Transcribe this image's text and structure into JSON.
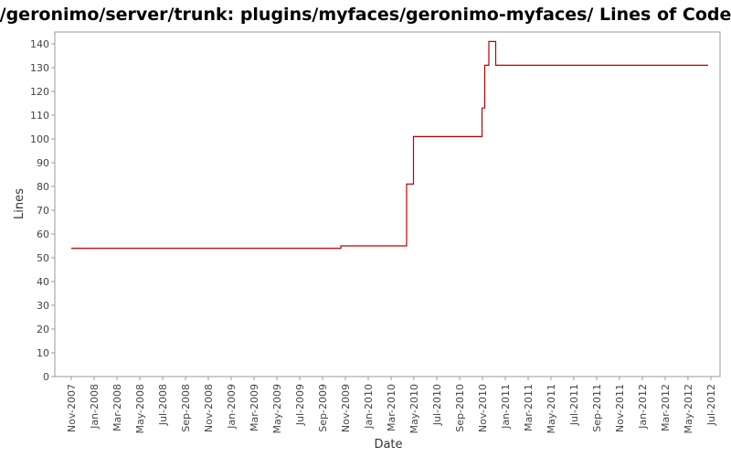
{
  "chart_data": {
    "type": "step",
    "title": "/geronimo/server/trunk: plugins/myfaces/geronimo-myfaces/ Lines of Code",
    "x_label": "Date",
    "y_label": "Lines",
    "x": [
      2007.833,
      2009.8,
      2010.28,
      2010.33,
      2010.83,
      2010.85,
      2010.88,
      2010.93,
      2012.48
    ],
    "series": [
      {
        "name": "Lines",
        "color": "#c00000",
        "values": [
          54,
          55,
          81,
          101,
          113,
          131,
          141,
          131,
          131
        ]
      }
    ],
    "xlim": [
      2007.713,
      2012.567
    ],
    "ylim": [
      0,
      145
    ],
    "yticks": [
      0,
      10,
      20,
      30,
      40,
      50,
      60,
      70,
      80,
      90,
      100,
      110,
      120,
      130,
      140
    ],
    "xticks": [
      {
        "value": 2007.833,
        "label": "Nov-2007"
      },
      {
        "value": 2008.0,
        "label": "Jan-2008"
      },
      {
        "value": 2008.167,
        "label": "Mar-2008"
      },
      {
        "value": 2008.333,
        "label": "May-2008"
      },
      {
        "value": 2008.5,
        "label": "Jul-2008"
      },
      {
        "value": 2008.667,
        "label": "Sep-2008"
      },
      {
        "value": 2008.833,
        "label": "Nov-2008"
      },
      {
        "value": 2009.0,
        "label": "Jan-2009"
      },
      {
        "value": 2009.167,
        "label": "Mar-2009"
      },
      {
        "value": 2009.333,
        "label": "May-2009"
      },
      {
        "value": 2009.5,
        "label": "Jul-2009"
      },
      {
        "value": 2009.667,
        "label": "Sep-2009"
      },
      {
        "value": 2009.833,
        "label": "Nov-2009"
      },
      {
        "value": 2010.0,
        "label": "Jan-2010"
      },
      {
        "value": 2010.167,
        "label": "Mar-2010"
      },
      {
        "value": 2010.333,
        "label": "May-2010"
      },
      {
        "value": 2010.5,
        "label": "Jul-2010"
      },
      {
        "value": 2010.667,
        "label": "Sep-2010"
      },
      {
        "value": 2010.833,
        "label": "Nov-2010"
      },
      {
        "value": 2011.0,
        "label": "Jan-2011"
      },
      {
        "value": 2011.167,
        "label": "Mar-2011"
      },
      {
        "value": 2011.333,
        "label": "May-2011"
      },
      {
        "value": 2011.5,
        "label": "Jul-2011"
      },
      {
        "value": 2011.667,
        "label": "Sep-2011"
      },
      {
        "value": 2011.833,
        "label": "Nov-2011"
      },
      {
        "value": 2012.0,
        "label": "Jan-2012"
      },
      {
        "value": 2012.167,
        "label": "Mar-2012"
      },
      {
        "value": 2012.333,
        "label": "May-2012"
      },
      {
        "value": 2012.5,
        "label": "Jul-2012"
      }
    ],
    "grid": false
  }
}
